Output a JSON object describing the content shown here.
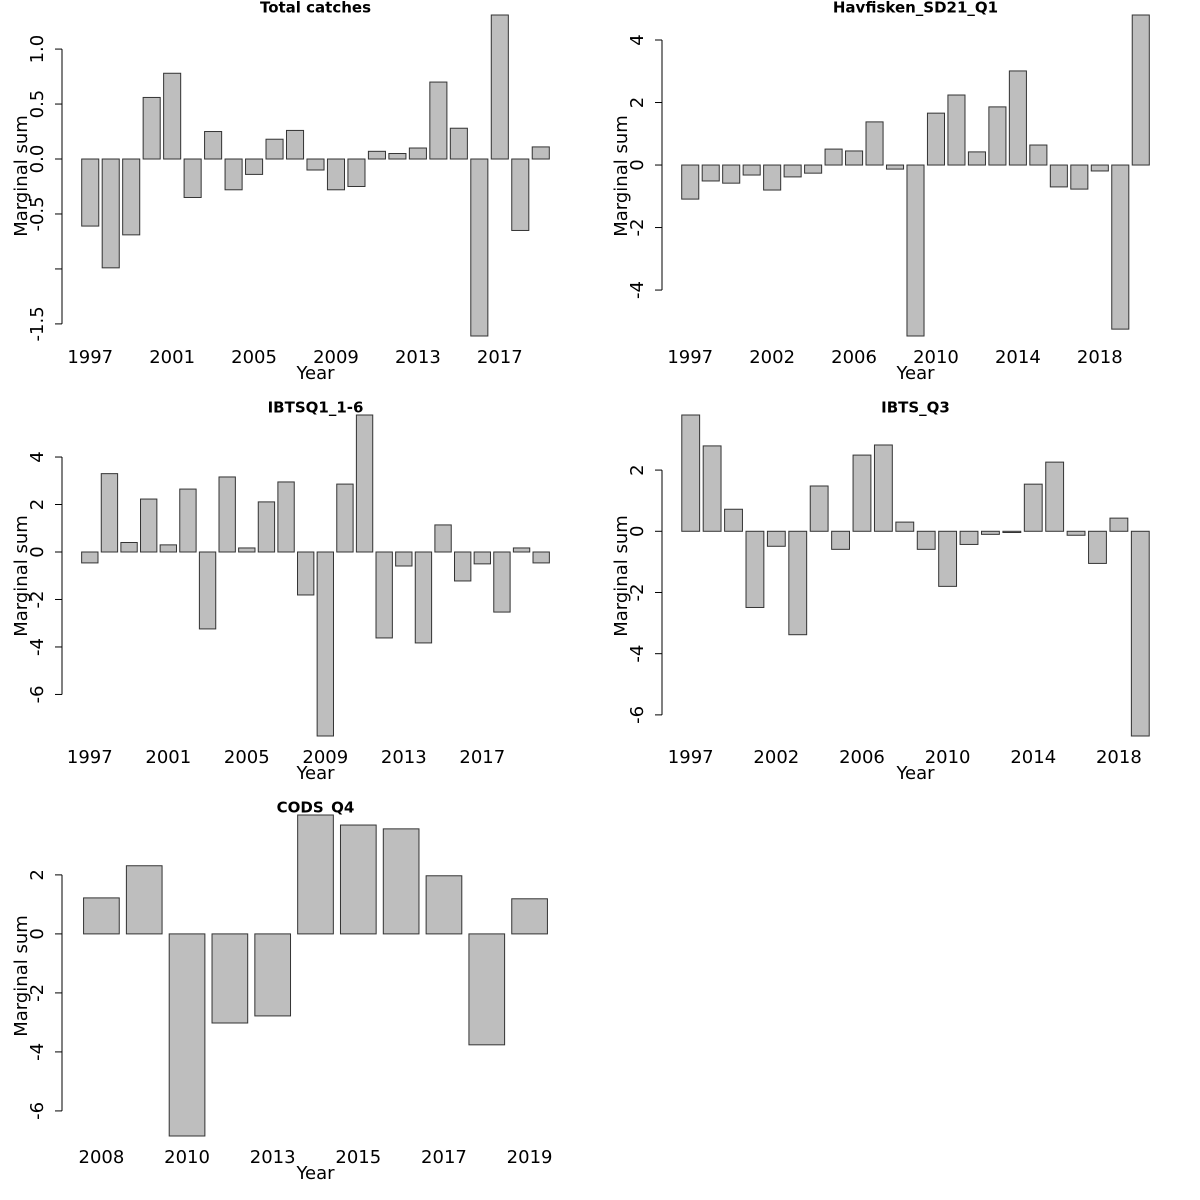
{
  "chart_data": [
    {
      "type": "bar",
      "title": "Total catches",
      "x_label": "Year",
      "y_label": "Marginal sum",
      "color": "#bebebe",
      "categories": [
        "1997",
        null,
        null,
        null,
        "2001",
        null,
        null,
        null,
        "2005",
        null,
        null,
        null,
        "2009",
        null,
        null,
        null,
        "2013",
        null,
        null,
        null,
        "2017",
        null,
        null
      ],
      "values": [
        -0.61,
        -0.99,
        -0.69,
        0.56,
        0.78,
        -0.35,
        0.25,
        -0.28,
        -0.14,
        0.18,
        0.26,
        -0.1,
        -0.28,
        -0.25,
        0.07,
        0.05,
        0.1,
        0.7,
        0.28,
        -1.61,
        1.31,
        -0.65,
        0.11
      ],
      "ylim": [
        -1.61,
        1.31
      ],
      "yticks": [
        -1.5,
        {
          "value": -1,
          "label": null
        },
        -0.5,
        {
          "value": 0,
          "label": "0.0"
        },
        0.5,
        {
          "value": 1,
          "label": "1.0"
        }
      ]
    },
    {
      "type": "bar",
      "title": "Havfisken_SD21_Q1",
      "x_label": "Year",
      "y_label": "Marginal sum",
      "color": "#bebebe",
      "categories": [
        "1997",
        null,
        null,
        null,
        "2002",
        null,
        null,
        null,
        "2006",
        null,
        null,
        null,
        "2010",
        null,
        null,
        null,
        "2014",
        null,
        null,
        null,
        "2018",
        null,
        null
      ],
      "values": [
        -1.09,
        -0.51,
        -0.58,
        -0.32,
        -0.8,
        -0.38,
        -0.26,
        0.51,
        0.45,
        1.38,
        -0.13,
        -5.47,
        1.66,
        2.24,
        0.42,
        1.86,
        3.01,
        0.64,
        -0.7,
        -0.77,
        -0.19,
        -5.25,
        4.8
      ],
      "ylim": [
        -5.47,
        4.8
      ],
      "yticks": [
        -4,
        -2,
        0,
        2,
        4
      ]
    },
    {
      "type": "bar",
      "title": "IBTSQ1_1-6",
      "x_label": "Year",
      "y_label": "Marginal sum",
      "color": "#bebebe",
      "categories": [
        "1997",
        null,
        null,
        null,
        "2001",
        null,
        null,
        null,
        "2005",
        null,
        null,
        null,
        "2009",
        null,
        null,
        null,
        "2013",
        null,
        null,
        null,
        "2017",
        null,
        null,
        null
      ],
      "values": [
        -0.46,
        3.3,
        0.4,
        2.23,
        0.3,
        2.65,
        -3.24,
        3.16,
        0.17,
        2.11,
        2.95,
        -1.81,
        -7.75,
        2.86,
        5.77,
        -3.62,
        -0.59,
        -3.83,
        1.14,
        -1.22,
        -0.5,
        -2.53,
        0.17,
        -0.46
      ],
      "ylim": [
        -7.75,
        5.77
      ],
      "yticks": [
        -6,
        -4,
        -2,
        0,
        2,
        4
      ]
    },
    {
      "type": "bar",
      "title": "IBTS_Q3",
      "x_label": "Year",
      "y_label": "Marginal sum",
      "color": "#bebebe",
      "categories": [
        "1997",
        null,
        null,
        null,
        "2002",
        null,
        null,
        null,
        "2006",
        null,
        null,
        null,
        "2010",
        null,
        null,
        null,
        "2014",
        null,
        null,
        null,
        "2018",
        null
      ],
      "values": [
        3.8,
        2.79,
        0.72,
        -2.49,
        -0.49,
        -3.38,
        1.48,
        -0.59,
        2.49,
        2.82,
        0.3,
        -0.59,
        -1.8,
        -0.43,
        -0.1,
        -0.04,
        1.54,
        2.26,
        -0.13,
        -1.05,
        0.43,
        -6.69
      ],
      "ylim": [
        -6.69,
        3.8
      ],
      "yticks": [
        -6,
        -4,
        -2,
        0,
        2
      ]
    },
    {
      "type": "bar",
      "title": "CODS_Q4",
      "x_label": "Year",
      "y_label": "Marginal sum",
      "color": "#bebebe",
      "categories": [
        "2008",
        null,
        "2010",
        null,
        "2013",
        null,
        "2015",
        null,
        "2017",
        null,
        "2019"
      ],
      "values": [
        1.22,
        2.31,
        -6.85,
        -3.02,
        -2.78,
        4.03,
        3.69,
        3.56,
        1.97,
        -3.76,
        1.19
      ],
      "ylim": [
        -6.85,
        4.03
      ],
      "yticks": [
        -6,
        -4,
        -2,
        0,
        2
      ]
    }
  ]
}
